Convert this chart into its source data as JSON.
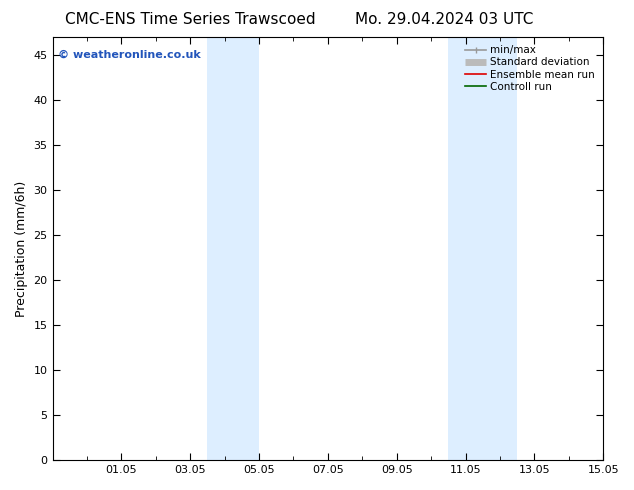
{
  "title_left": "CMC-ENS Time Series Trawscoed",
  "title_right": "Mo. 29.04.2024 03 UTC",
  "ylabel": "Precipitation (mm/6h)",
  "ylim": [
    0,
    47
  ],
  "yticks": [
    0,
    5,
    10,
    15,
    20,
    25,
    30,
    35,
    40,
    45
  ],
  "xlim": [
    0,
    16
  ],
  "xtick_labels": [
    "01.05",
    "03.05",
    "05.05",
    "07.05",
    "09.05",
    "11.05",
    "13.05",
    "15.05"
  ],
  "xtick_positions": [
    2,
    4,
    6,
    8,
    10,
    12,
    14,
    16
  ],
  "shaded_bands": [
    {
      "x_start": 4.5,
      "x_end": 6.0
    },
    {
      "x_start": 11.5,
      "x_end": 13.5
    }
  ],
  "shade_color": "#ddeeff",
  "watermark": "© weatheronline.co.uk",
  "watermark_color": "#2255bb",
  "legend_items": [
    {
      "label": "min/max",
      "color": "#999999",
      "lw": 1.2
    },
    {
      "label": "Standard deviation",
      "color": "#bbbbbb",
      "lw": 5
    },
    {
      "label": "Ensemble mean run",
      "color": "#dd0000",
      "lw": 1.2
    },
    {
      "label": "Controll run",
      "color": "#006600",
      "lw": 1.2
    }
  ],
  "background_color": "#ffffff",
  "plot_bg_color": "#ffffff",
  "title_fontsize": 11,
  "label_fontsize": 9,
  "tick_fontsize": 8,
  "legend_fontsize": 7.5
}
